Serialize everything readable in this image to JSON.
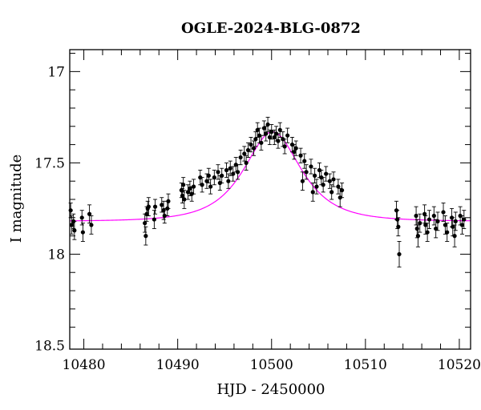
{
  "chart_data": {
    "type": "scatter",
    "title": "OGLE-2024-BLG-0872",
    "xlabel": "HJD - 2450000",
    "ylabel": "I magnitude",
    "xlim": [
      10478.5,
      10521.2
    ],
    "ylim": [
      18.52,
      16.88
    ],
    "y_inverted": true,
    "xticks": [
      10480,
      10490,
      10500,
      10510,
      10520
    ],
    "xtick_labels": [
      "10480",
      "10490",
      "10500",
      "10510",
      "10520"
    ],
    "yticks": [
      17,
      17.5,
      18,
      18.5
    ],
    "ytick_labels": [
      "17",
      "17.5",
      "18",
      "18.5"
    ],
    "grid": false,
    "colors": {
      "points": "#000000",
      "model": "#ff00ff",
      "frame": "#000000"
    },
    "model": {
      "type": "pspl_fit",
      "t0": 10500.1,
      "baseline_mag": 17.82,
      "peak_mag": 17.33,
      "tE_days": 4.2
    },
    "series": [
      {
        "kind": "data_points_with_errors",
        "points": [
          [
            10478.6,
            17.76,
            0.04
          ],
          [
            10478.7,
            17.84,
            0.05
          ],
          [
            10478.9,
            17.82,
            0.04
          ],
          [
            10479.0,
            17.87,
            0.05
          ],
          [
            10479.8,
            17.8,
            0.04
          ],
          [
            10479.9,
            17.88,
            0.05
          ],
          [
            10480.6,
            17.78,
            0.05
          ],
          [
            10480.8,
            17.84,
            0.05
          ],
          [
            10486.5,
            17.83,
            0.05
          ],
          [
            10486.6,
            17.9,
            0.05
          ],
          [
            10486.7,
            17.78,
            0.04
          ],
          [
            10486.8,
            17.75,
            0.04
          ],
          [
            10486.9,
            17.74,
            0.05
          ],
          [
            10487.5,
            17.81,
            0.05
          ],
          [
            10487.6,
            17.74,
            0.04
          ],
          [
            10488.3,
            17.73,
            0.04
          ],
          [
            10488.5,
            17.76,
            0.05
          ],
          [
            10488.6,
            17.79,
            0.04
          ],
          [
            10488.9,
            17.75,
            0.04
          ],
          [
            10489.0,
            17.71,
            0.04
          ],
          [
            10490.4,
            17.65,
            0.04
          ],
          [
            10490.5,
            17.68,
            0.04
          ],
          [
            10490.6,
            17.62,
            0.04
          ],
          [
            10490.7,
            17.7,
            0.05
          ],
          [
            10491.1,
            17.66,
            0.04
          ],
          [
            10491.3,
            17.64,
            0.04
          ],
          [
            10491.5,
            17.67,
            0.04
          ],
          [
            10491.7,
            17.63,
            0.04
          ],
          [
            10492.4,
            17.58,
            0.04
          ],
          [
            10492.6,
            17.62,
            0.04
          ],
          [
            10493.1,
            17.6,
            0.04
          ],
          [
            10493.3,
            17.57,
            0.04
          ],
          [
            10493.5,
            17.63,
            0.04
          ],
          [
            10493.9,
            17.58,
            0.04
          ],
          [
            10494.3,
            17.55,
            0.04
          ],
          [
            10494.5,
            17.61,
            0.04
          ],
          [
            10494.7,
            17.57,
            0.04
          ],
          [
            10495.2,
            17.54,
            0.04
          ],
          [
            10495.4,
            17.6,
            0.04
          ],
          [
            10495.6,
            17.53,
            0.04
          ],
          [
            10495.9,
            17.56,
            0.04
          ],
          [
            10496.2,
            17.51,
            0.04
          ],
          [
            10496.4,
            17.55,
            0.04
          ],
          [
            10496.7,
            17.47,
            0.04
          ],
          [
            10497.1,
            17.45,
            0.04
          ],
          [
            10497.3,
            17.5,
            0.04
          ],
          [
            10497.5,
            17.43,
            0.04
          ],
          [
            10497.8,
            17.4,
            0.04
          ],
          [
            10498.1,
            17.42,
            0.04
          ],
          [
            10498.3,
            17.37,
            0.04
          ],
          [
            10498.5,
            17.32,
            0.04
          ],
          [
            10498.7,
            17.35,
            0.04
          ],
          [
            10498.9,
            17.39,
            0.04
          ],
          [
            10499.2,
            17.31,
            0.04
          ],
          [
            10499.4,
            17.34,
            0.04
          ],
          [
            10499.6,
            17.29,
            0.04
          ],
          [
            10499.8,
            17.36,
            0.04
          ],
          [
            10500.0,
            17.33,
            0.04
          ],
          [
            10500.3,
            17.36,
            0.04
          ],
          [
            10500.5,
            17.34,
            0.04
          ],
          [
            10500.7,
            17.38,
            0.04
          ],
          [
            10500.9,
            17.32,
            0.04
          ],
          [
            10501.2,
            17.37,
            0.04
          ],
          [
            10501.4,
            17.41,
            0.04
          ],
          [
            10501.7,
            17.35,
            0.04
          ],
          [
            10502.2,
            17.4,
            0.04
          ],
          [
            10502.4,
            17.44,
            0.04
          ],
          [
            10502.6,
            17.42,
            0.04
          ],
          [
            10503.1,
            17.46,
            0.04
          ],
          [
            10503.3,
            17.6,
            0.05
          ],
          [
            10503.5,
            17.49,
            0.04
          ],
          [
            10503.7,
            17.55,
            0.04
          ],
          [
            10504.2,
            17.52,
            0.04
          ],
          [
            10504.4,
            17.66,
            0.05
          ],
          [
            10504.6,
            17.57,
            0.04
          ],
          [
            10504.8,
            17.63,
            0.04
          ],
          [
            10505.1,
            17.54,
            0.04
          ],
          [
            10505.3,
            17.58,
            0.04
          ],
          [
            10505.5,
            17.62,
            0.04
          ],
          [
            10505.8,
            17.56,
            0.04
          ],
          [
            10506.2,
            17.6,
            0.04
          ],
          [
            10506.4,
            17.66,
            0.04
          ],
          [
            10506.6,
            17.59,
            0.04
          ],
          [
            10507.1,
            17.63,
            0.04
          ],
          [
            10507.3,
            17.69,
            0.05
          ],
          [
            10507.5,
            17.65,
            0.04
          ],
          [
            10513.3,
            17.76,
            0.05
          ],
          [
            10513.4,
            17.81,
            0.05
          ],
          [
            10513.5,
            17.85,
            0.05
          ],
          [
            10513.6,
            18.0,
            0.07
          ],
          [
            10515.4,
            17.79,
            0.05
          ],
          [
            10515.5,
            17.86,
            0.05
          ],
          [
            10515.6,
            17.9,
            0.06
          ],
          [
            10515.8,
            17.83,
            0.05
          ],
          [
            10516.3,
            17.78,
            0.05
          ],
          [
            10516.4,
            17.84,
            0.05
          ],
          [
            10516.6,
            17.88,
            0.05
          ],
          [
            10516.8,
            17.81,
            0.05
          ],
          [
            10517.3,
            17.79,
            0.05
          ],
          [
            10517.5,
            17.86,
            0.05
          ],
          [
            10517.7,
            17.82,
            0.05
          ],
          [
            10518.3,
            17.77,
            0.05
          ],
          [
            10518.5,
            17.84,
            0.05
          ],
          [
            10518.7,
            17.88,
            0.05
          ],
          [
            10519.2,
            17.8,
            0.05
          ],
          [
            10519.3,
            17.85,
            0.05
          ],
          [
            10519.5,
            17.9,
            0.06
          ],
          [
            10519.6,
            17.82,
            0.05
          ],
          [
            10520.1,
            17.79,
            0.05
          ],
          [
            10520.3,
            17.84,
            0.05
          ],
          [
            10520.5,
            17.81,
            0.05
          ]
        ]
      }
    ]
  }
}
